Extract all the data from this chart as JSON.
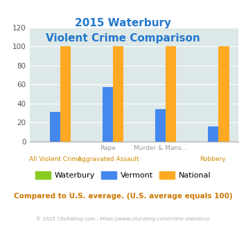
{
  "title_line1": "2015 Waterbury",
  "title_line2": "Violent Crime Comparison",
  "categories_line1": [
    "",
    "Rape",
    "Murder & Mans...",
    ""
  ],
  "categories_line2": [
    "All Violent Crime",
    "Aggravated Assault",
    "",
    "Robbery"
  ],
  "waterbury": [
    0,
    0,
    0,
    0
  ],
  "vermont": [
    31,
    57,
    34,
    16
  ],
  "national": [
    100,
    100,
    100,
    100
  ],
  "bar_colors": {
    "waterbury": "#88cc22",
    "vermont": "#4488ee",
    "national": "#ffaa22"
  },
  "ylim": [
    0,
    120
  ],
  "yticks": [
    0,
    20,
    40,
    60,
    80,
    100,
    120
  ],
  "background_color": "#dde8e8",
  "fig_background": "#ffffff",
  "title_color": "#2277cc",
  "note_text": "Compared to U.S. average. (U.S. average equals 100)",
  "footer_text": "© 2025 CityRating.com - https://www.cityrating.com/crime-statistics/",
  "legend_labels": [
    "Waterbury",
    "Vermont",
    "National"
  ]
}
